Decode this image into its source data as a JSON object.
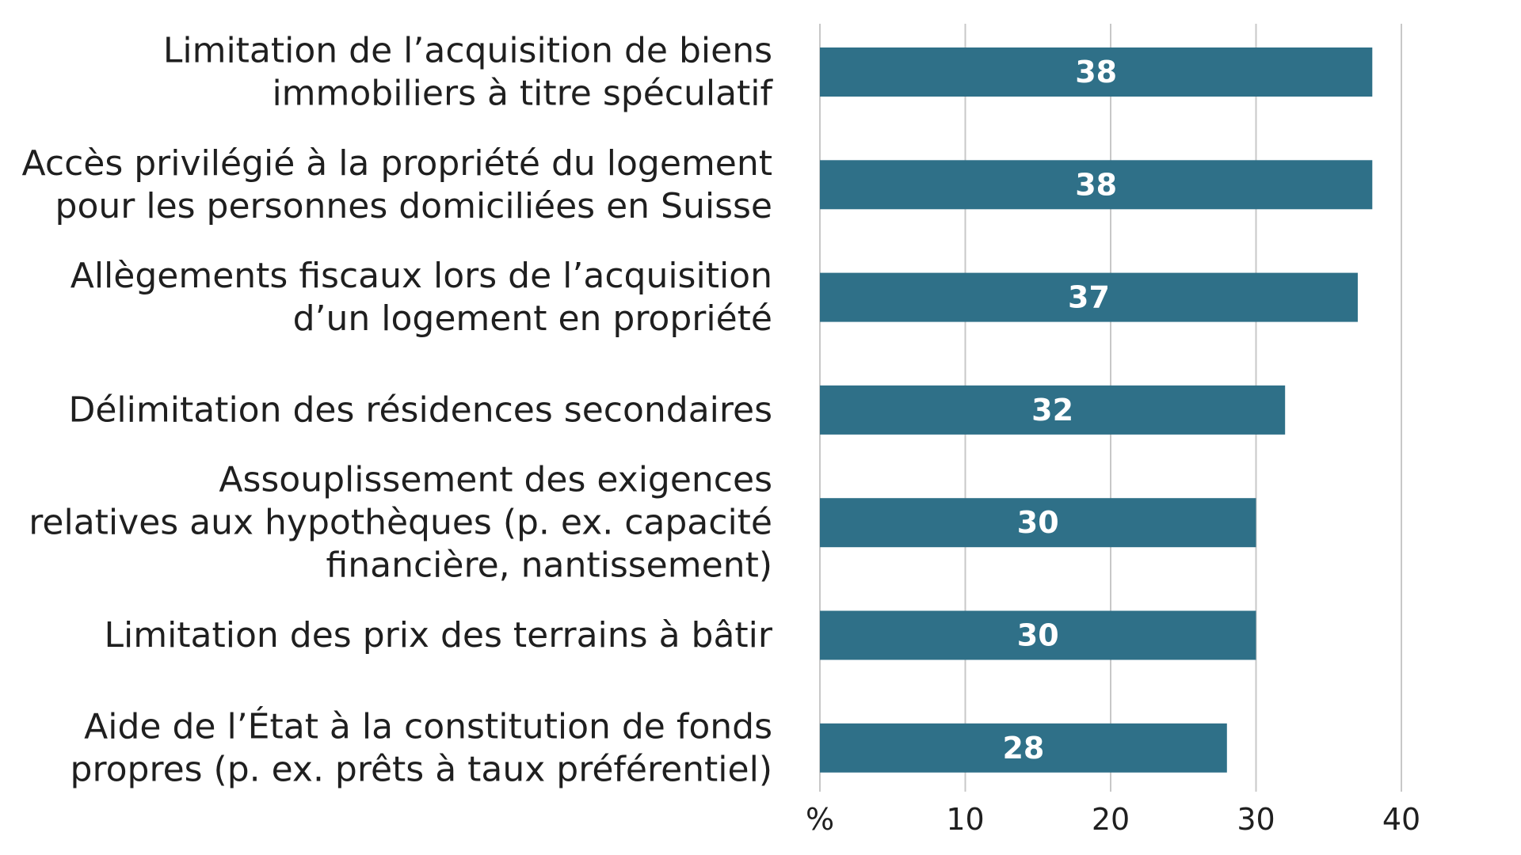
{
  "chart_data": {
    "type": "bar",
    "orientation": "horizontal",
    "categories": [
      [
        "Limitation de l’acquisition de biens",
        "immobiliers à titre spéculatif"
      ],
      [
        "Accès privilégié à la propriété du logement",
        "pour les personnes domiciliées en Suisse"
      ],
      [
        "Allègements fiscaux lors de l’acquisition",
        "d’un logement en propriété"
      ],
      [
        "Délimitation des résidences secondaires"
      ],
      [
        "Assouplissement des exigences",
        "relatives aux hypothèques (p. ex. capacité",
        "financière, nantissement)"
      ],
      [
        "Limitation des prix des terrains à bâtir"
      ],
      [
        "Aide de l’État à la constitution de fonds",
        "propres (p. ex. prêts à taux préférentiel)"
      ]
    ],
    "values": [
      38,
      38,
      37,
      32,
      30,
      30,
      28
    ],
    "value_labels": [
      "38",
      "38",
      "37",
      "32",
      "30",
      "30",
      "28"
    ],
    "x_ticks": [
      0,
      10,
      20,
      30,
      40
    ],
    "x_tick_labels": [
      "%",
      "10",
      "20",
      "30",
      "40"
    ],
    "xlim": [
      0,
      40
    ],
    "grid": true,
    "bar_color": "#2f7088"
  }
}
